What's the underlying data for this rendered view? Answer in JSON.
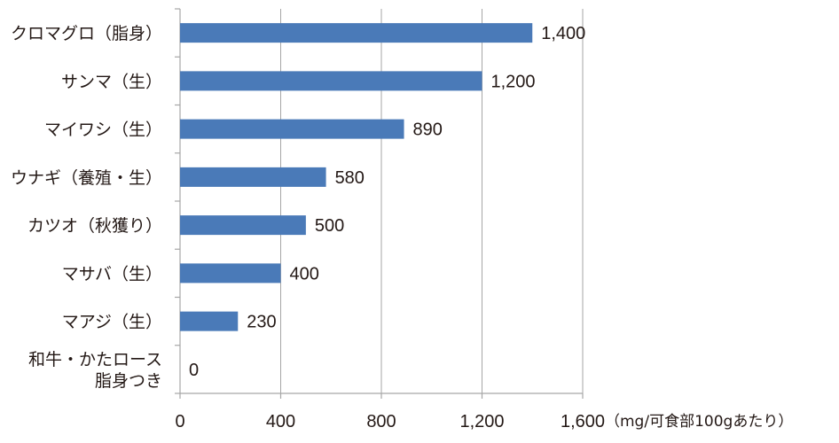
{
  "chart_data": {
    "type": "bar",
    "orientation": "horizontal",
    "categories": [
      [
        "クロマグロ（脂身）"
      ],
      [
        "サンマ（生）"
      ],
      [
        "マイワシ（生）"
      ],
      [
        "ウナギ（養殖・生）"
      ],
      [
        "カツオ（秋獲り）"
      ],
      [
        "マサバ（生）"
      ],
      [
        "マアジ（生）"
      ],
      [
        "和牛・かたロース",
        "脂身つき"
      ]
    ],
    "values": [
      1400,
      1200,
      890,
      580,
      500,
      400,
      230,
      0
    ],
    "value_labels": [
      "1,400",
      "1,200",
      "890",
      "580",
      "500",
      "400",
      "230",
      "0"
    ],
    "x_ticks": [
      0,
      400,
      800,
      1200,
      1600
    ],
    "x_tick_labels": [
      "0",
      "400",
      "800",
      "1,200",
      "1,600"
    ],
    "xlim": [
      0,
      1600
    ],
    "x_unit_label": "（mg/可食部100gあたり）",
    "title": "",
    "xlabel": "",
    "ylabel": "",
    "grid": "vertical",
    "legend": "none",
    "colors": {
      "bar": "#4a7ab8",
      "grid": "#a6a6a6",
      "axis": "#a6a6a6",
      "text": "#231815"
    }
  }
}
